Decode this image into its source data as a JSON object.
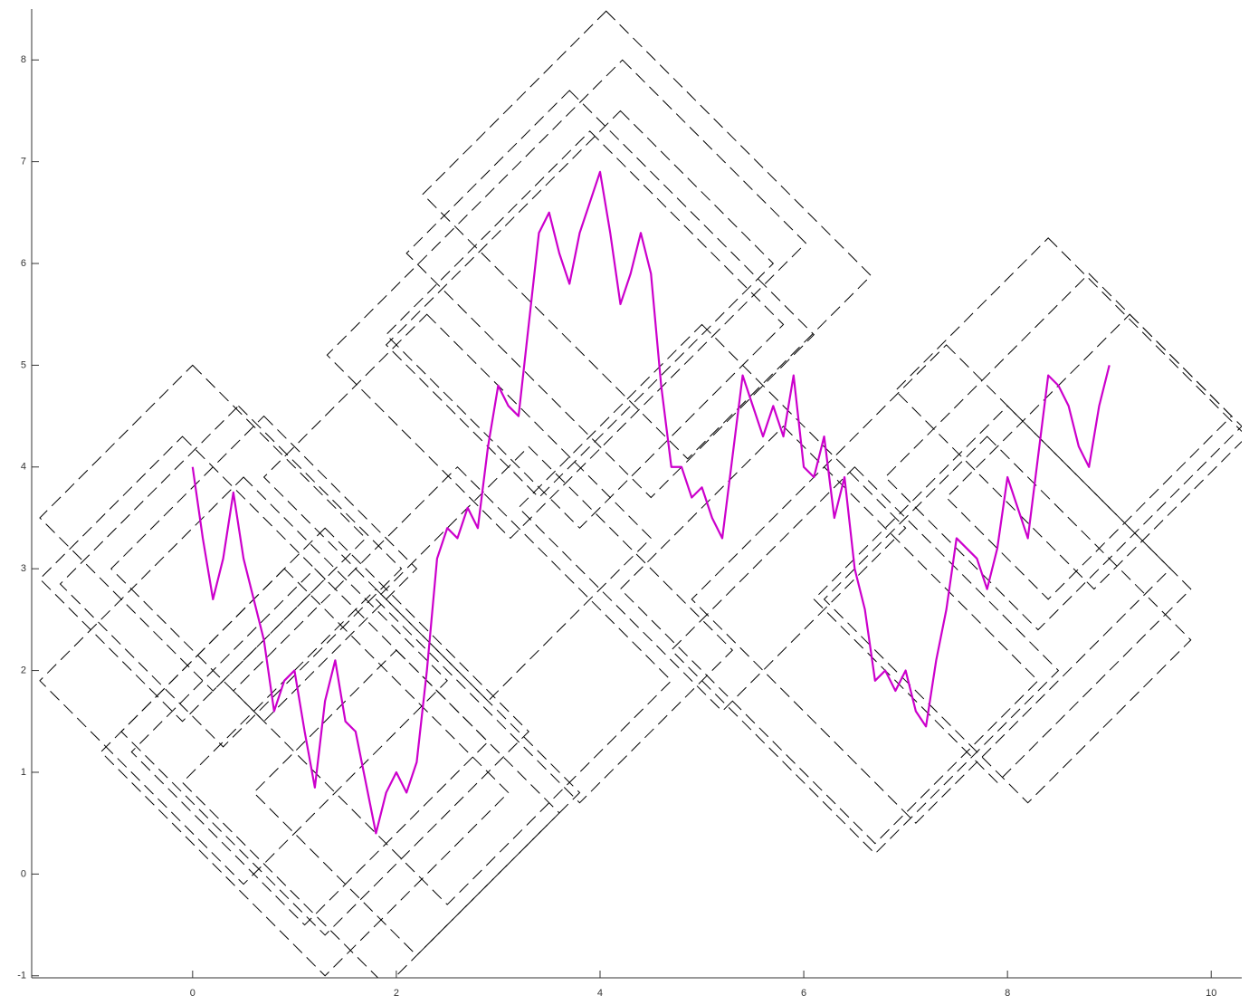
{
  "chart_data": {
    "type": "line",
    "xlim": [
      -1.58,
      10.3
    ],
    "ylim": [
      -1.02,
      8.5
    ],
    "xticks": [
      0,
      2,
      4,
      6,
      8,
      10
    ],
    "yticks": [
      -1,
      0,
      1,
      2,
      3,
      4,
      5,
      6,
      7,
      8
    ],
    "series": [
      {
        "color": "#cc00cc",
        "x": [
          0,
          0.1,
          0.2,
          0.3,
          0.4,
          0.5,
          0.6,
          0.7,
          0.8,
          0.9,
          1.0,
          1.1,
          1.2,
          1.3,
          1.4,
          1.5,
          1.6,
          1.7,
          1.8,
          1.9,
          2.0,
          2.1,
          2.2,
          2.3,
          2.4,
          2.5,
          2.6,
          2.7,
          2.8,
          2.9,
          3.0,
          3.1,
          3.2,
          3.3,
          3.4,
          3.5,
          3.6,
          3.7,
          3.8,
          3.9,
          4.0,
          4.1,
          4.2,
          4.3,
          4.4,
          4.5,
          4.6,
          4.7,
          4.8,
          4.9,
          5.0,
          5.1,
          5.2,
          5.3,
          5.4,
          5.5,
          5.6,
          5.7,
          5.8,
          5.9,
          6.0,
          6.1,
          6.2,
          6.3,
          6.4,
          6.5,
          6.6,
          6.7,
          6.8,
          6.9,
          7.0,
          7.1,
          7.2,
          7.3,
          7.4,
          7.5,
          7.6,
          7.7,
          7.8,
          7.9,
          8.0,
          8.1,
          8.2,
          8.3,
          8.4,
          8.5,
          8.6,
          8.7,
          8.8,
          8.9,
          9.0
        ],
        "y": [
          4.0,
          3.3,
          2.7,
          3.1,
          3.75,
          3.1,
          2.7,
          2.3,
          1.6,
          1.9,
          2.0,
          1.4,
          0.85,
          1.7,
          2.1,
          1.5,
          1.4,
          0.9,
          0.4,
          0.8,
          1.0,
          0.8,
          1.1,
          2.0,
          3.1,
          3.4,
          3.3,
          3.6,
          3.4,
          4.2,
          4.8,
          4.6,
          4.5,
          5.4,
          6.3,
          6.5,
          6.1,
          5.8,
          6.3,
          6.6,
          6.9,
          6.3,
          5.6,
          5.9,
          6.3,
          5.9,
          4.8,
          4.0,
          4.0,
          3.7,
          3.8,
          3.5,
          3.3,
          4.1,
          4.9,
          4.6,
          4.3,
          4.6,
          4.3,
          4.9,
          4.0,
          3.9,
          4.3,
          3.5,
          3.9,
          3.0,
          2.6,
          1.9,
          2.0,
          1.8,
          2.0,
          1.6,
          1.45,
          2.1,
          2.6,
          3.3,
          3.2,
          3.1,
          2.8,
          3.2,
          3.9,
          3.6,
          3.3,
          4.1,
          4.9,
          4.8,
          4.6,
          4.2,
          4.0,
          4.6,
          5.0
        ]
      }
    ],
    "squares_color": "#000000",
    "squares": [
      {
        "x": [
          4.06,
          6.66,
          4.86,
          2.26
        ],
        "y": [
          8.48,
          5.88,
          4.08,
          6.68
        ]
      },
      {
        "x": [
          4.22,
          6.02,
          3.12,
          1.32
        ],
        "y": [
          8.0,
          6.2,
          3.3,
          5.1
        ]
      },
      {
        "x": [
          0,
          1.7,
          0.2,
          -1.5
        ],
        "y": [
          5.0,
          3.3,
          1.8,
          3.5
        ]
      },
      {
        "x": [
          0.45,
          2.05,
          0.3,
          -1.3
        ],
        "y": [
          4.6,
          3.0,
          1.25,
          2.85
        ]
      },
      {
        "x": [
          0.7,
          2.2,
          0.7,
          -0.8
        ],
        "y": [
          4.5,
          3.0,
          1.5,
          3.0
        ]
      },
      {
        "x": [
          2.6,
          4.7,
          2.5,
          0.4
        ],
        "y": [
          4.0,
          1.9,
          -0.3,
          1.8
        ]
      },
      {
        "x": [
          1.8,
          3.8,
          1.9,
          -0.1
        ],
        "y": [
          2.8,
          0.8,
          -1.1,
          0.9
        ]
      },
      {
        "x": [
          8.4,
          10.35,
          8.85,
          6.9
        ],
        "y": [
          6.25,
          4.3,
          2.8,
          4.75
        ]
      },
      {
        "x": [
          8.8,
          10.3,
          8.3,
          6.8
        ],
        "y": [
          5.9,
          4.4,
          2.4,
          3.9
        ]
      },
      {
        "x": [
          9.2,
          10.2,
          8.4,
          7.4
        ],
        "y": [
          5.5,
          4.5,
          2.7,
          3.7
        ]
      },
      {
        "x": [
          5.8,
          8.3,
          6.7,
          4.2
        ],
        "y": [
          4.4,
          1.9,
          0.3,
          2.8
        ]
      },
      {
        "x": [
          7.4,
          9.6,
          7.1,
          4.9
        ],
        "y": [
          5.2,
          3.0,
          0.5,
          2.7
        ]
      },
      {
        "x": [
          3.9,
          5.8,
          3.8,
          1.9
        ],
        "y": [
          7.3,
          5.4,
          3.4,
          5.3
        ]
      },
      {
        "x": [
          4.2,
          5.7,
          3.4,
          1.9
        ],
        "y": [
          7.5,
          6.0,
          3.7,
          5.2
        ]
      },
      {
        "x": [
          3.7,
          6.1,
          4.5,
          2.1
        ],
        "y": [
          7.7,
          5.3,
          3.7,
          6.1
        ]
      },
      {
        "x": [
          2.3,
          4.5,
          2.9,
          0.7
        ],
        "y": [
          5.5,
          3.3,
          1.7,
          3.9
        ]
      },
      {
        "x": [
          0.5,
          2.5,
          0.5,
          -1.5
        ],
        "y": [
          3.9,
          1.9,
          -0.1,
          1.9
        ]
      },
      {
        "x": [
          1.3,
          3.3,
          1.3,
          -0.7
        ],
        "y": [
          3.4,
          1.4,
          -0.6,
          1.4
        ]
      },
      {
        "x": [
          0.9,
          3.1,
          1.3,
          -0.9
        ],
        "y": [
          3.0,
          0.8,
          -1.0,
          1.2
        ]
      },
      {
        "x": [
          2.0,
          3.6,
          2.2,
          0.6
        ],
        "y": [
          2.2,
          0.6,
          -0.8,
          0.8
        ]
      },
      {
        "x": [
          6.5,
          8.5,
          6.7,
          4.7
        ],
        "y": [
          4.0,
          2.0,
          0.2,
          2.2
        ]
      },
      {
        "x": [
          7.8,
          9.8,
          8.2,
          6.2
        ],
        "y": [
          4.3,
          2.3,
          0.7,
          2.7
        ]
      },
      {
        "x": [
          8.0,
          9.8,
          7.9,
          6.1
        ],
        "y": [
          4.6,
          2.8,
          0.9,
          2.7
        ]
      },
      {
        "x": [
          5.0,
          7.0,
          5.2,
          3.2
        ],
        "y": [
          5.4,
          3.4,
          1.6,
          3.6
        ]
      },
      {
        "x": [
          3.3,
          5.3,
          3.8,
          1.8
        ],
        "y": [
          4.2,
          2.2,
          0.7,
          2.7
        ]
      },
      {
        "x": [
          -0.1,
          1.3,
          -0.1,
          -1.5
        ],
        "y": [
          4.3,
          2.9,
          1.5,
          2.9
        ]
      },
      {
        "x": [
          1.2,
          2.9,
          1.1,
          -0.6
        ],
        "y": [
          3.0,
          1.3,
          -0.5,
          1.2
        ]
      }
    ]
  }
}
